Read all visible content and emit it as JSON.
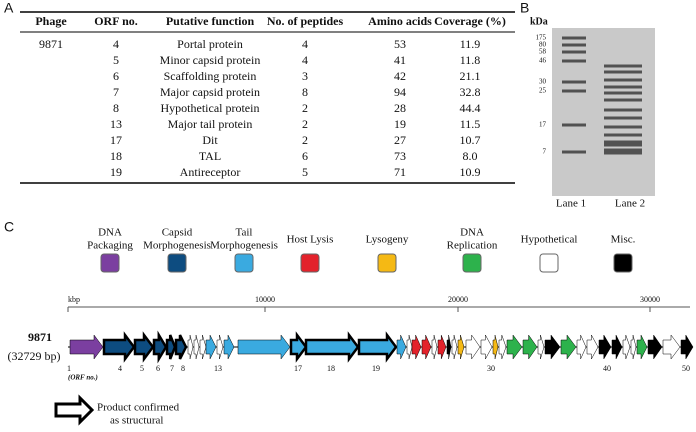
{
  "panel_a": {
    "letter": "A",
    "table": {
      "header": [
        "Phage",
        "ORF no.",
        "Putative function",
        "No. of peptides",
        "Amino acids",
        "Coverage (%)"
      ],
      "rows": [
        [
          "9871",
          "4",
          "Portal protein",
          "4",
          "53",
          "11.9"
        ],
        [
          "",
          "5",
          "Minor capsid protein",
          "4",
          "41",
          "11.8"
        ],
        [
          "",
          "6",
          "Scaffolding protein",
          "3",
          "42",
          "21.1"
        ],
        [
          "",
          "7",
          "Major capsid protein",
          "8",
          "94",
          "32.8"
        ],
        [
          "",
          "8",
          "Hypothetical protein",
          "2",
          "28",
          "44.4"
        ],
        [
          "",
          "13",
          "Major tail protein",
          "2",
          "19",
          "11.5"
        ],
        [
          "",
          "17",
          "Dit",
          "2",
          "27",
          "10.7"
        ],
        [
          "",
          "18",
          "TAL",
          "6",
          "73",
          "8.0"
        ],
        [
          "",
          "19",
          "Antireceptor",
          "5",
          "71",
          "10.9"
        ]
      ]
    }
  },
  "panel_b": {
    "letter": "B",
    "unit": "kDa",
    "markers": [
      "175",
      "80",
      "58",
      "46",
      "30",
      "25",
      "17",
      "7"
    ],
    "lanes": [
      "Lane 1",
      "Lane 2"
    ]
  },
  "panel_c": {
    "letter": "C",
    "legend": [
      {
        "label": [
          "DNA",
          "Packaging"
        ],
        "color": "#7b3fa0"
      },
      {
        "label": [
          "Capsid",
          "Morphogenesis"
        ],
        "color": "#0d4c80"
      },
      {
        "label": [
          "Tail",
          "Morphogenesis"
        ],
        "color": "#3aaae0"
      },
      {
        "label": [
          "Host Lysis"
        ],
        "color": "#e3222b"
      },
      {
        "label": [
          "Lysogeny"
        ],
        "color": "#f5b914"
      },
      {
        "label": [
          "DNA",
          "Replication"
        ],
        "color": "#2db24c"
      },
      {
        "label": [
          "Hypothetical"
        ],
        "color": "#ffffff"
      },
      {
        "label": [
          "Misc."
        ],
        "color": "#000000"
      }
    ],
    "ruler": {
      "unit": "kbp",
      "ticks": [
        "10000",
        "20000",
        "30000"
      ]
    },
    "phage": "9871",
    "length": "(32729 bp)",
    "orf_labels": [
      "1",
      "4",
      "5",
      "6",
      "7",
      "8",
      "13",
      "17",
      "18",
      "19",
      "30",
      "40",
      "50"
    ],
    "orf_caption": "(ORF no.)",
    "footnote": [
      "Product confirmed",
      "as structural"
    ]
  }
}
